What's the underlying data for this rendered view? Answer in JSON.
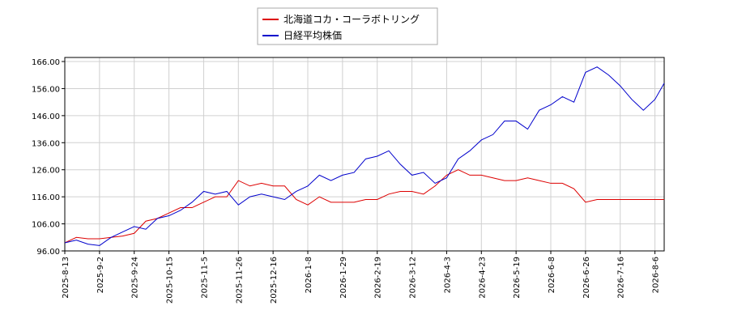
{
  "chart_data": {
    "type": "line",
    "legend_position": "upper center",
    "grid": true,
    "x": [
      0,
      5,
      10,
      15,
      20,
      25,
      30,
      35,
      40,
      45,
      50,
      55,
      60,
      65,
      70,
      75,
      80,
      85,
      90,
      95,
      100,
      105,
      110,
      115,
      120,
      125,
      130,
      135,
      140,
      145,
      150,
      155,
      160,
      165,
      170,
      175,
      180,
      185,
      190,
      195,
      200,
      205,
      210,
      215,
      220,
      225,
      230,
      235,
      240,
      245,
      250,
      255,
      259
    ],
    "series": [
      {
        "name": "北海道コカ・コーラボトリング",
        "color": "#dd0000",
        "values": [
          99,
          101,
          100.5,
          100.5,
          101,
          101.5,
          102.5,
          107,
          108,
          110,
          112,
          112,
          114,
          116,
          116,
          122,
          120,
          121,
          120,
          120,
          115,
          113,
          116,
          114,
          114,
          114,
          115,
          115,
          117,
          118,
          118,
          117,
          120,
          124,
          126,
          124,
          124,
          123,
          122,
          122,
          123,
          122,
          121,
          121,
          119,
          114,
          115,
          115,
          115,
          115,
          115,
          115,
          115
        ]
      },
      {
        "name": "日経平均株価",
        "color": "#0000cc",
        "values": [
          99,
          100,
          98.5,
          98,
          101,
          103,
          105,
          104,
          108,
          109,
          111,
          114,
          118,
          117,
          118,
          113,
          116,
          117,
          116,
          115,
          118,
          120,
          124,
          122,
          124,
          125,
          130,
          131,
          133,
          128,
          124,
          125,
          121,
          123,
          130,
          133,
          137,
          139,
          144,
          144,
          141,
          148,
          150,
          153,
          151,
          162,
          164,
          161,
          157,
          152,
          148,
          152,
          158
        ]
      }
    ],
    "xlim": [
      0,
      259
    ],
    "xticks": [
      {
        "value": 0,
        "label": "2025-8-13"
      },
      {
        "value": 15,
        "label": "2025-9-2"
      },
      {
        "value": 30,
        "label": "2025-9-24"
      },
      {
        "value": 45,
        "label": "2025-10-15"
      },
      {
        "value": 60,
        "label": "2025-11-5"
      },
      {
        "value": 75,
        "label": "2025-11-26"
      },
      {
        "value": 90,
        "label": "2025-12-16"
      },
      {
        "value": 105,
        "label": "2026-1-8"
      },
      {
        "value": 120,
        "label": "2026-1-29"
      },
      {
        "value": 135,
        "label": "2026-2-19"
      },
      {
        "value": 150,
        "label": "2026-3-12"
      },
      {
        "value": 165,
        "label": "2026-4-3"
      },
      {
        "value": 180,
        "label": "2026-4-23"
      },
      {
        "value": 195,
        "label": "2026-5-19"
      },
      {
        "value": 210,
        "label": "2026-6-8"
      },
      {
        "value": 225,
        "label": "2026-6-26"
      },
      {
        "value": 240,
        "label": "2026-7-16"
      },
      {
        "value": 255,
        "label": "2026-8-6"
      }
    ],
    "ylim": [
      96,
      167.5
    ],
    "yticks": [
      {
        "value": 96,
        "label": "96.00"
      },
      {
        "value": 106,
        "label": "106.00"
      },
      {
        "value": 116,
        "label": "116.00"
      },
      {
        "value": 126,
        "label": "126.00"
      },
      {
        "value": 136,
        "label": "136.00"
      },
      {
        "value": 146,
        "label": "146.00"
      },
      {
        "value": 156,
        "label": "156.00"
      },
      {
        "value": 166,
        "label": "166.00"
      }
    ]
  }
}
